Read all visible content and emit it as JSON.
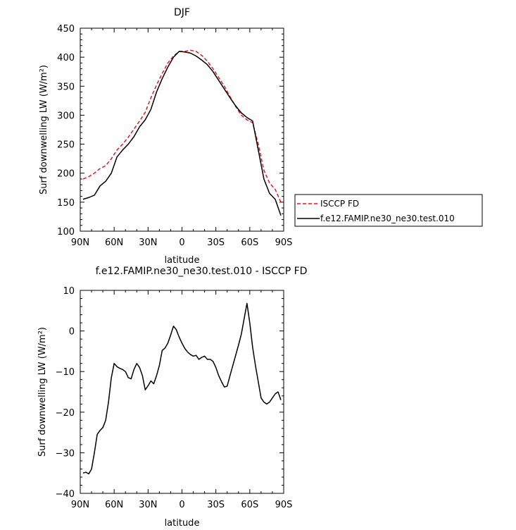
{
  "chart_data": [
    {
      "type": "line",
      "title": "DJF",
      "xlabel": "latitude",
      "ylabel": "Surf downwelling LW (W/m²)",
      "xlim": [
        -90,
        90
      ],
      "ylim": [
        100,
        450
      ],
      "x_ticks": [
        -90,
        -60,
        -30,
        0,
        30,
        60,
        90
      ],
      "x_tick_labels": [
        "90N",
        "60N",
        "30N",
        "0",
        "30S",
        "60S",
        "90S"
      ],
      "y_ticks": [
        100,
        150,
        200,
        250,
        300,
        350,
        400,
        450
      ],
      "y_tick_labels": [
        "100",
        "150",
        "200",
        "250",
        "300",
        "350",
        "400",
        "450"
      ],
      "legend": {
        "placement": "right",
        "entries": [
          {
            "label": "ISCCP FD",
            "color": "#e8161b",
            "dash": "dashed"
          },
          {
            "label": "f.e12.FAMIP.ne30_ne30.test.010",
            "color": "#000000",
            "dash": "solid"
          }
        ]
      },
      "series": [
        {
          "name": "ISCCP FD",
          "color": "#e8161b",
          "dash": "dashed",
          "x": [
            -87.5,
            -82.5,
            -77.5,
            -72.5,
            -67.5,
            -62.5,
            -57.5,
            -52.5,
            -47.5,
            -42.5,
            -37.5,
            -32.5,
            -27.5,
            -22.5,
            -17.5,
            -12.5,
            -7.5,
            -2.5,
            2.5,
            7.5,
            12.5,
            17.5,
            22.5,
            27.5,
            32.5,
            37.5,
            42.5,
            47.5,
            52.5,
            57.5,
            62.5,
            67.5,
            72.5,
            77.5,
            82.5,
            87.5
          ],
          "y": [
            190,
            194,
            200,
            208,
            213,
            225,
            240,
            250,
            262,
            276,
            290,
            305,
            330,
            352,
            372,
            390,
            402,
            410,
            410,
            412,
            410,
            403,
            393,
            380,
            365,
            350,
            332,
            315,
            300,
            292,
            287,
            250,
            205,
            183,
            172,
            150
          ]
        },
        {
          "name": "f.e12.FAMIP.ne30_ne30.test.010",
          "color": "#000000",
          "dash": "solid",
          "x": [
            -87.5,
            -82.5,
            -77.5,
            -72.5,
            -67.5,
            -62.5,
            -57.5,
            -52.5,
            -47.5,
            -42.5,
            -37.5,
            -32.5,
            -27.5,
            -22.5,
            -17.5,
            -12.5,
            -7.5,
            -2.5,
            2.5,
            7.5,
            12.5,
            17.5,
            22.5,
            27.5,
            32.5,
            37.5,
            42.5,
            47.5,
            52.5,
            57.5,
            62.5,
            67.5,
            72.5,
            77.5,
            82.5,
            87.5
          ],
          "y": [
            155,
            158,
            162,
            178,
            186,
            200,
            228,
            240,
            250,
            263,
            280,
            292,
            310,
            340,
            363,
            383,
            400,
            410,
            409,
            407,
            402,
            395,
            387,
            375,
            360,
            345,
            330,
            316,
            304,
            296,
            290,
            240,
            190,
            165,
            155,
            127
          ]
        }
      ]
    },
    {
      "type": "line",
      "title": "f.e12.FAMIP.ne30_ne30.test.010 - ISCCP FD",
      "xlabel": "latitude",
      "ylabel": "Surf downwelling LW (W/m²)",
      "xlim": [
        -90,
        90
      ],
      "ylim": [
        -40,
        10
      ],
      "x_ticks": [
        -90,
        -60,
        -30,
        0,
        30,
        60,
        90
      ],
      "x_tick_labels": [
        "90N",
        "60N",
        "30N",
        "0",
        "30S",
        "60S",
        "90S"
      ],
      "y_ticks": [
        -40,
        -30,
        -20,
        -10,
        0,
        10
      ],
      "y_tick_labels": [
        "−40",
        "−30",
        "−20",
        "−10",
        "0",
        "10"
      ],
      "series": [
        {
          "color": "#000000",
          "dash": "solid",
          "x": [
            -87.5,
            -85,
            -82.5,
            -80,
            -77.5,
            -75,
            -72.5,
            -70,
            -67.5,
            -65,
            -62.5,
            -60,
            -57.5,
            -55,
            -52.5,
            -50,
            -47.5,
            -45,
            -42.5,
            -40,
            -37.5,
            -35,
            -32.5,
            -30,
            -27.5,
            -25,
            -22.5,
            -20,
            -17.5,
            -15,
            -12.5,
            -10,
            -7.5,
            -5,
            -2.5,
            0,
            2.5,
            5,
            7.5,
            10,
            12.5,
            15,
            17.5,
            20,
            22.5,
            25,
            27.5,
            30,
            32.5,
            35,
            37.5,
            40,
            42.5,
            45,
            47.5,
            50,
            52.5,
            55,
            57.5,
            60,
            62.5,
            65,
            67.5,
            70,
            72.5,
            75,
            77.5,
            80,
            82.5,
            85,
            87.5
          ],
          "y": [
            -35,
            -34.8,
            -35.2,
            -34.0,
            -30.0,
            -25.5,
            -24.5,
            -23.8,
            -22.0,
            -17.5,
            -11.5,
            -8.0,
            -8.8,
            -9.2,
            -9.5,
            -10.0,
            -11.5,
            -11.8,
            -9.5,
            -8.0,
            -9.0,
            -11.0,
            -14.5,
            -13.5,
            -12.3,
            -13.0,
            -11.0,
            -8.5,
            -4.8,
            -4.2,
            -3.0,
            -1.0,
            1.2,
            0.3,
            -1.5,
            -3.0,
            -4.3,
            -5.2,
            -5.8,
            -6.2,
            -6.0,
            -7.0,
            -6.5,
            -6.2,
            -7.0,
            -7.0,
            -7.5,
            -9.0,
            -11.0,
            -12.5,
            -13.8,
            -13.6,
            -11.0,
            -8.5,
            -6.0,
            -3.5,
            -0.8,
            3.0,
            6.8,
            2.0,
            -4.0,
            -8.5,
            -12.5,
            -16.5,
            -17.5,
            -18.0,
            -17.5,
            -16.5,
            -15.5,
            -15.0,
            -17.0
          ]
        }
      ]
    }
  ]
}
